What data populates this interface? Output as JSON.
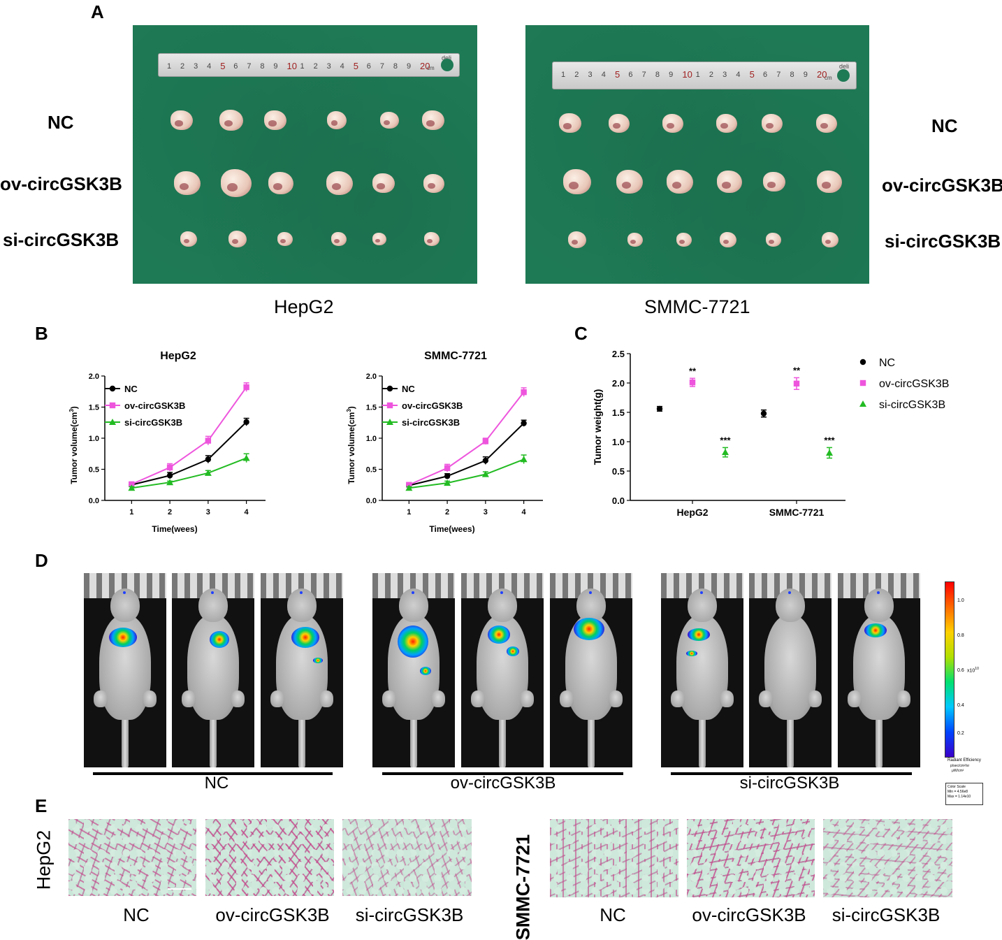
{
  "panelA": {
    "letter": "A",
    "row_labels_left": [
      "NC",
      "ov-circGSK3B",
      "si-circGSK3B"
    ],
    "row_labels_right": [
      "NC",
      "ov-circGSK3B",
      "si-circGSK3B"
    ],
    "photo_captions": [
      "HepG2",
      "SMMC-7721"
    ],
    "ruler_brand": "deli",
    "ruler_numbers": [
      "1",
      "2",
      "3",
      "4",
      "5",
      "6",
      "7",
      "8",
      "9",
      "10",
      "1",
      "2",
      "3",
      "4",
      "5",
      "6",
      "7",
      "8",
      "9",
      "20"
    ],
    "ruler_unit": "cm"
  },
  "panelB": {
    "letter": "B",
    "ylabel": "Tumor volume(cm",
    "ylabel_sup": "3",
    "ylabel_close": ")",
    "xlabel": "Time(wees)"
  },
  "panelC": {
    "letter": "C",
    "ylabel": "Tumor weight(g)",
    "legend": [
      "NC",
      "ov-circGSK3B",
      "si-circGSK3B"
    ]
  },
  "panelD": {
    "letter": "D",
    "group_labels": [
      "NC",
      "ov-circGSK3B",
      "si-circGSK3B"
    ],
    "colorbar_ticks": [
      "1.0",
      "0.8",
      "0.6",
      "0.4",
      "0.2"
    ],
    "colorbar_exp": "x10",
    "colorbar_exp_sup": "10",
    "colorbar_title": "Radiant Efficiency",
    "colorbar_units_num": "p/sec/cm²/sr",
    "colorbar_units_den": "μW/cm²",
    "scale_box": [
      "Color Scale",
      "Min = 4.56e8",
      "Max = 1.14e10"
    ]
  },
  "panelE": {
    "letter": "E",
    "side_labels": [
      "HepG2",
      "SMMC-7721"
    ],
    "captions_left": [
      "NC",
      "ov-circGSK3B",
      "si-circGSK3B"
    ],
    "captions_right": [
      "NC",
      "ov-circGSK3B",
      "si-circGSK3B"
    ]
  },
  "colors": {
    "NC": "#000000",
    "ov": "#ee55dd",
    "si": "#22bb22",
    "tray": "#1e7a55"
  },
  "chart_data": [
    {
      "type": "line",
      "id": "volume-hepg2",
      "title": "HepG2",
      "xlabel": "Time(wees)",
      "ylabel": "Tumor volume(cm3)",
      "x": [
        1,
        2,
        3,
        4
      ],
      "xticks": [
        "1",
        "2",
        "3",
        "4"
      ],
      "ylim": [
        0,
        2.0
      ],
      "yticks": [
        "0.0",
        "0.5",
        "1.0",
        "1.5",
        "2.0"
      ],
      "legend_position": "top-left",
      "series": [
        {
          "name": "NC",
          "values": [
            0.25,
            0.4,
            0.66,
            1.26
          ],
          "err": [
            0.03,
            0.05,
            0.06,
            0.06
          ]
        },
        {
          "name": "ov-circGSK3B",
          "values": [
            0.26,
            0.53,
            0.96,
            1.82
          ],
          "err": [
            0.03,
            0.06,
            0.07,
            0.07
          ]
        },
        {
          "name": "si-circGSK3B",
          "values": [
            0.2,
            0.29,
            0.44,
            0.68
          ],
          "err": [
            0.02,
            0.02,
            0.04,
            0.07
          ]
        }
      ]
    },
    {
      "type": "line",
      "id": "volume-smmc",
      "title": "SMMC-7721",
      "xlabel": "Time(wees)",
      "ylabel": "Tumor volume(cm3)",
      "x": [
        1,
        2,
        3,
        4
      ],
      "xticks": [
        "1",
        "2",
        "3",
        "4"
      ],
      "ylim": [
        0,
        2.0
      ],
      "yticks": [
        "0.0",
        "0.5",
        "1.0",
        "1.5",
        "2.0"
      ],
      "legend_position": "top-left",
      "series": [
        {
          "name": "NC",
          "values": [
            0.24,
            0.39,
            0.64,
            1.24
          ],
          "err": [
            0.03,
            0.04,
            0.06,
            0.05
          ]
        },
        {
          "name": "ov-circGSK3B",
          "values": [
            0.25,
            0.52,
            0.95,
            1.74
          ],
          "err": [
            0.03,
            0.06,
            0.05,
            0.07
          ]
        },
        {
          "name": "si-circGSK3B",
          "values": [
            0.2,
            0.28,
            0.42,
            0.66
          ],
          "err": [
            0.02,
            0.03,
            0.04,
            0.07
          ]
        }
      ]
    },
    {
      "type": "scatter",
      "id": "weight",
      "ylabel": "Tumor weight(g)",
      "categories": [
        "HepG2",
        "SMMC-7721"
      ],
      "ylim": [
        0,
        2.5
      ],
      "yticks": [
        "0.0",
        "0.5",
        "1.0",
        "1.5",
        "2.0",
        "2.5"
      ],
      "legend_position": "right",
      "series": [
        {
          "name": "NC",
          "values": [
            1.56,
            1.48
          ],
          "err": [
            0.04,
            0.06
          ],
          "sig": [
            "",
            ""
          ]
        },
        {
          "name": "ov-circGSK3B",
          "values": [
            2.01,
            1.99
          ],
          "err": [
            0.07,
            0.1
          ],
          "sig": [
            "**",
            "**"
          ]
        },
        {
          "name": "si-circGSK3B",
          "values": [
            0.82,
            0.81
          ],
          "err": [
            0.08,
            0.09
          ],
          "sig": [
            "***",
            "***"
          ]
        }
      ]
    }
  ]
}
